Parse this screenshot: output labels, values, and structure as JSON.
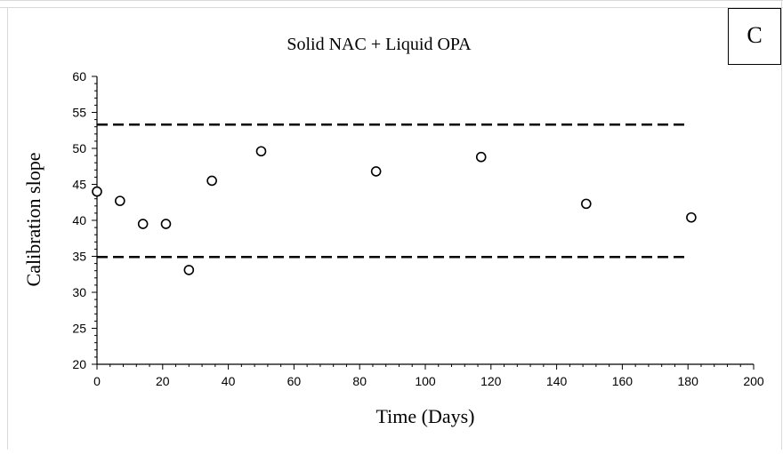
{
  "panel_label": "C",
  "chart_data": {
    "type": "scatter",
    "title": "Solid NAC + Liquid OPA",
    "xlabel": "Time (Days)",
    "ylabel": "Calibration slope",
    "xlim": [
      0,
      200
    ],
    "ylim": [
      20,
      60
    ],
    "xticks": [
      0,
      20,
      40,
      60,
      80,
      100,
      120,
      140,
      160,
      180,
      200
    ],
    "yticks": [
      20,
      25,
      30,
      35,
      40,
      45,
      50,
      55,
      60
    ],
    "grid": false,
    "legend": "none",
    "marker": "open-circle",
    "points": [
      {
        "x": 0,
        "y": 44.0
      },
      {
        "x": 7,
        "y": 42.7
      },
      {
        "x": 14,
        "y": 39.5
      },
      {
        "x": 21,
        "y": 39.5
      },
      {
        "x": 28,
        "y": 33.1
      },
      {
        "x": 35,
        "y": 45.5
      },
      {
        "x": 50,
        "y": 49.6
      },
      {
        "x": 85,
        "y": 46.8
      },
      {
        "x": 117,
        "y": 48.8
      },
      {
        "x": 149,
        "y": 42.3
      },
      {
        "x": 181,
        "y": 40.4
      }
    ],
    "reference_lines": [
      {
        "y": 53.3,
        "x_range": [
          0,
          180
        ],
        "style": "dashed"
      },
      {
        "y": 34.9,
        "x_range": [
          0,
          180
        ],
        "style": "dashed"
      }
    ]
  }
}
